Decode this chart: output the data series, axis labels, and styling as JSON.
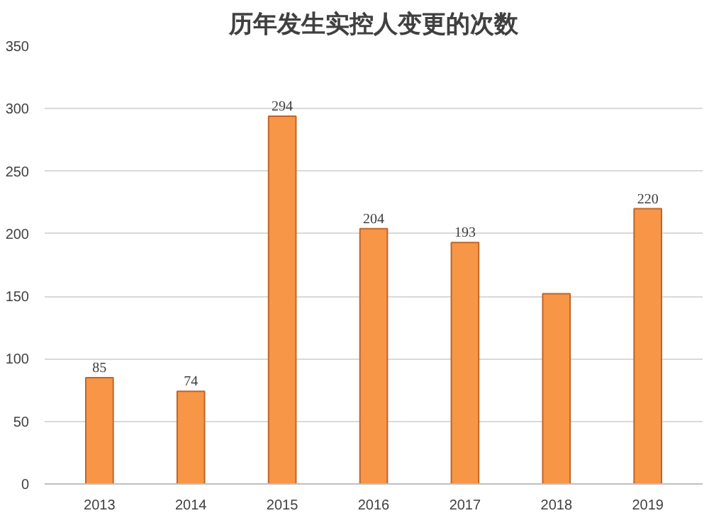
{
  "chart_data": {
    "type": "bar",
    "title": "历年发生实控人变更的次数",
    "categories": [
      "2013",
      "2014",
      "2015",
      "2016",
      "2017",
      "2018",
      "2019"
    ],
    "values": [
      85,
      74,
      294,
      204,
      193,
      152,
      220
    ],
    "value_labels": [
      "85",
      "74",
      "294",
      "204",
      "193",
      null,
      "220"
    ],
    "color": "#f79646",
    "ylim": [
      0,
      350
    ],
    "yticks": [
      0,
      50,
      100,
      150,
      200,
      250,
      300,
      350
    ],
    "grid": "y"
  }
}
